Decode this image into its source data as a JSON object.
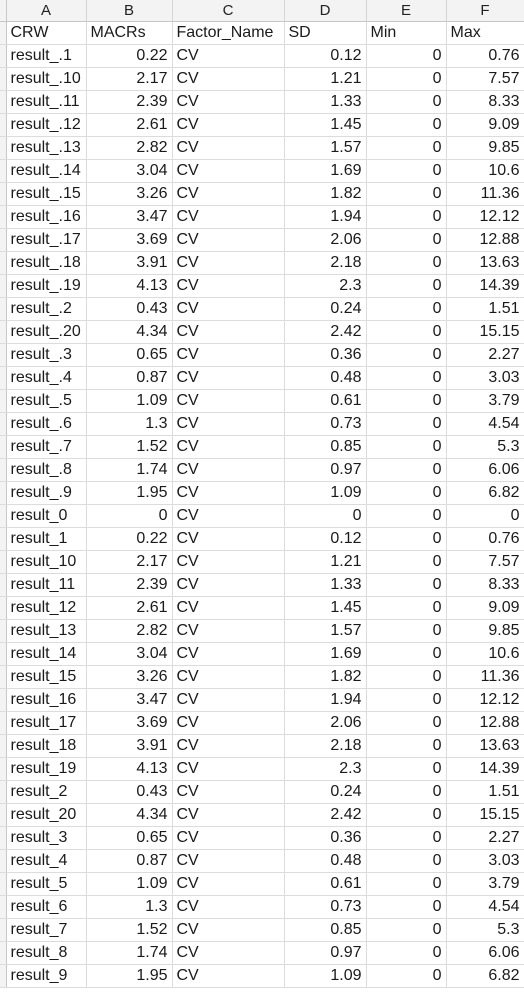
{
  "spreadsheet": {
    "columns": [
      "A",
      "B",
      "C",
      "D",
      "E",
      "F"
    ],
    "header": [
      "CRW",
      "MACRs",
      "Factor_Name",
      "SD",
      "Min",
      "Max"
    ],
    "rows": [
      [
        "result_.1",
        "0.22",
        "CV",
        "0.12",
        "0",
        "0.76"
      ],
      [
        "result_.10",
        "2.17",
        "CV",
        "1.21",
        "0",
        "7.57"
      ],
      [
        "result_.11",
        "2.39",
        "CV",
        "1.33",
        "0",
        "8.33"
      ],
      [
        "result_.12",
        "2.61",
        "CV",
        "1.45",
        "0",
        "9.09"
      ],
      [
        "result_.13",
        "2.82",
        "CV",
        "1.57",
        "0",
        "9.85"
      ],
      [
        "result_.14",
        "3.04",
        "CV",
        "1.69",
        "0",
        "10.6"
      ],
      [
        "result_.15",
        "3.26",
        "CV",
        "1.82",
        "0",
        "11.36"
      ],
      [
        "result_.16",
        "3.47",
        "CV",
        "1.94",
        "0",
        "12.12"
      ],
      [
        "result_.17",
        "3.69",
        "CV",
        "2.06",
        "0",
        "12.88"
      ],
      [
        "result_.18",
        "3.91",
        "CV",
        "2.18",
        "0",
        "13.63"
      ],
      [
        "result_.19",
        "4.13",
        "CV",
        "2.3",
        "0",
        "14.39"
      ],
      [
        "result_.2",
        "0.43",
        "CV",
        "0.24",
        "0",
        "1.51"
      ],
      [
        "result_.20",
        "4.34",
        "CV",
        "2.42",
        "0",
        "15.15"
      ],
      [
        "result_.3",
        "0.65",
        "CV",
        "0.36",
        "0",
        "2.27"
      ],
      [
        "result_.4",
        "0.87",
        "CV",
        "0.48",
        "0",
        "3.03"
      ],
      [
        "result_.5",
        "1.09",
        "CV",
        "0.61",
        "0",
        "3.79"
      ],
      [
        "result_.6",
        "1.3",
        "CV",
        "0.73",
        "0",
        "4.54"
      ],
      [
        "result_.7",
        "1.52",
        "CV",
        "0.85",
        "0",
        "5.3"
      ],
      [
        "result_.8",
        "1.74",
        "CV",
        "0.97",
        "0",
        "6.06"
      ],
      [
        "result_.9",
        "1.95",
        "CV",
        "1.09",
        "0",
        "6.82"
      ],
      [
        "result_0",
        "0",
        "CV",
        "0",
        "0",
        "0"
      ],
      [
        "result_1",
        "0.22",
        "CV",
        "0.12",
        "0",
        "0.76"
      ],
      [
        "result_10",
        "2.17",
        "CV",
        "1.21",
        "0",
        "7.57"
      ],
      [
        "result_11",
        "2.39",
        "CV",
        "1.33",
        "0",
        "8.33"
      ],
      [
        "result_12",
        "2.61",
        "CV",
        "1.45",
        "0",
        "9.09"
      ],
      [
        "result_13",
        "2.82",
        "CV",
        "1.57",
        "0",
        "9.85"
      ],
      [
        "result_14",
        "3.04",
        "CV",
        "1.69",
        "0",
        "10.6"
      ],
      [
        "result_15",
        "3.26",
        "CV",
        "1.82",
        "0",
        "11.36"
      ],
      [
        "result_16",
        "3.47",
        "CV",
        "1.94",
        "0",
        "12.12"
      ],
      [
        "result_17",
        "3.69",
        "CV",
        "2.06",
        "0",
        "12.88"
      ],
      [
        "result_18",
        "3.91",
        "CV",
        "2.18",
        "0",
        "13.63"
      ],
      [
        "result_19",
        "4.13",
        "CV",
        "2.3",
        "0",
        "14.39"
      ],
      [
        "result_2",
        "0.43",
        "CV",
        "0.24",
        "0",
        "1.51"
      ],
      [
        "result_20",
        "4.34",
        "CV",
        "2.42",
        "0",
        "15.15"
      ],
      [
        "result_3",
        "0.65",
        "CV",
        "0.36",
        "0",
        "2.27"
      ],
      [
        "result_4",
        "0.87",
        "CV",
        "0.48",
        "0",
        "3.03"
      ],
      [
        "result_5",
        "1.09",
        "CV",
        "0.61",
        "0",
        "3.79"
      ],
      [
        "result_6",
        "1.3",
        "CV",
        "0.73",
        "0",
        "4.54"
      ],
      [
        "result_7",
        "1.52",
        "CV",
        "0.85",
        "0",
        "5.3"
      ],
      [
        "result_8",
        "1.74",
        "CV",
        "0.97",
        "0",
        "6.06"
      ],
      [
        "result_9",
        "1.95",
        "CV",
        "1.09",
        "0",
        "6.82"
      ]
    ]
  }
}
